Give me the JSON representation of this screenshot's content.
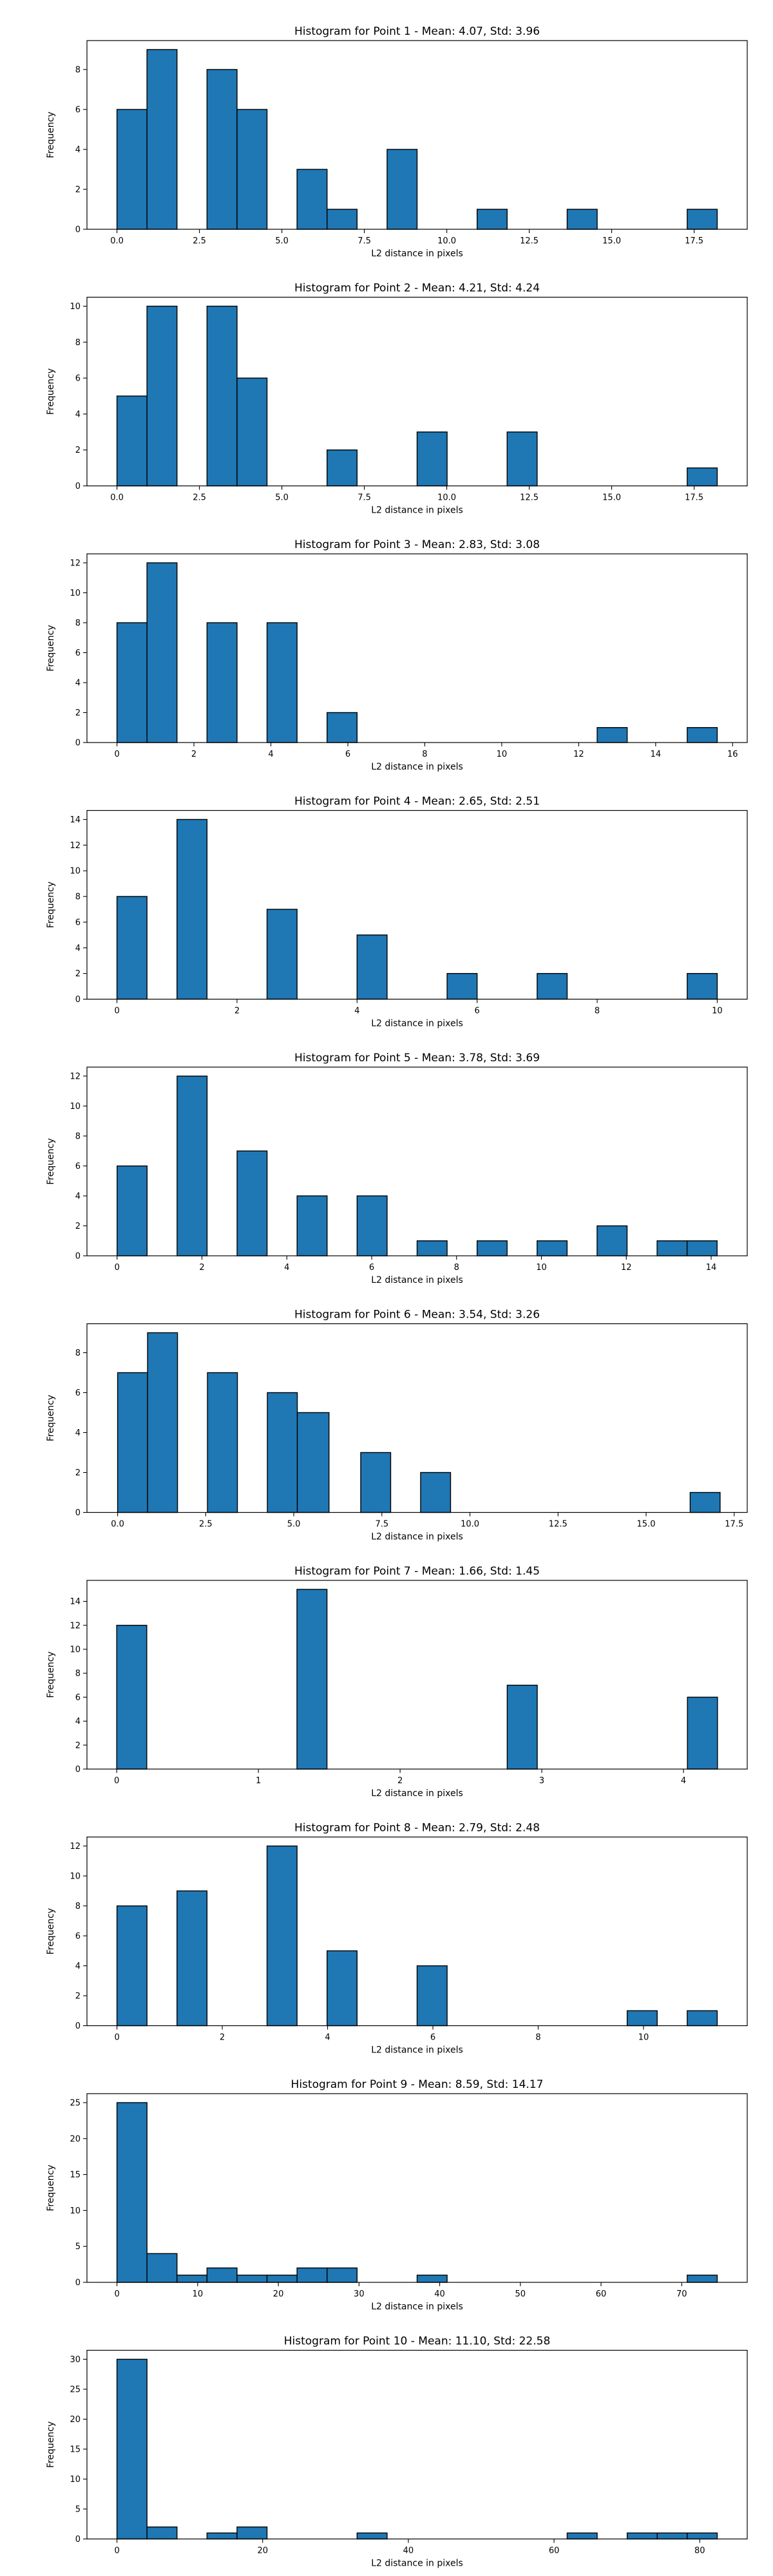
{
  "colors": {
    "bar_fill": "#1f77b4",
    "bar_edge": "#000000",
    "axis": "#000000",
    "text": "#000000"
  },
  "chart_data": [
    {
      "type": "bar",
      "title": "Histogram for Point 1 - Mean: 4.07, Std: 3.96",
      "xlabel": "L2 distance in pixels",
      "ylabel": "Frequency",
      "xlim": [
        -0.91,
        19.11
      ],
      "ylim": [
        0,
        9.45
      ],
      "x_ticks": [
        0,
        2.5,
        5,
        7.5,
        10,
        12.5,
        15,
        17.5
      ],
      "x_tick_labels": [
        "0.0",
        "2.5",
        "5.0",
        "7.5",
        "10.0",
        "12.5",
        "15.0",
        "17.5"
      ],
      "y_ticks": [
        0,
        2,
        4,
        6,
        8
      ],
      "y_tick_labels": [
        "0",
        "2",
        "4",
        "6",
        "8"
      ],
      "bin_edges": [
        0.0,
        0.91,
        1.82,
        2.73,
        3.64,
        4.55,
        5.46,
        6.37,
        7.28,
        8.19,
        9.1,
        10.01,
        10.92,
        11.83,
        12.74,
        13.65,
        14.56,
        15.47,
        16.38,
        17.29,
        18.2
      ],
      "counts": [
        6,
        9,
        0,
        8,
        6,
        0,
        3,
        1,
        0,
        4,
        0,
        0,
        1,
        0,
        0,
        1,
        0,
        0,
        0,
        1
      ]
    },
    {
      "type": "bar",
      "title": "Histogram for Point 2 - Mean: 4.21, Std: 4.24",
      "xlabel": "L2 distance in pixels",
      "ylabel": "Frequency",
      "xlim": [
        -0.91,
        19.11
      ],
      "ylim": [
        0,
        10.5
      ],
      "x_ticks": [
        0,
        2.5,
        5,
        7.5,
        10,
        12.5,
        15,
        17.5
      ],
      "x_tick_labels": [
        "0.0",
        "2.5",
        "5.0",
        "7.5",
        "10.0",
        "12.5",
        "15.0",
        "17.5"
      ],
      "y_ticks": [
        0,
        2,
        4,
        6,
        8,
        10
      ],
      "y_tick_labels": [
        "0",
        "2",
        "4",
        "6",
        "8",
        "10"
      ],
      "bin_edges": [
        0.0,
        0.91,
        1.82,
        2.73,
        3.64,
        4.55,
        5.46,
        6.37,
        7.28,
        8.19,
        9.1,
        10.01,
        10.92,
        11.83,
        12.74,
        13.65,
        14.56,
        15.47,
        16.38,
        17.29,
        18.2
      ],
      "counts": [
        5,
        10,
        0,
        10,
        6,
        0,
        0,
        2,
        0,
        0,
        3,
        0,
        0,
        3,
        0,
        0,
        0,
        0,
        0,
        1
      ]
    },
    {
      "type": "bar",
      "title": "Histogram for Point 3 - Mean: 2.83, Std: 3.08",
      "xlabel": "L2 distance in pixels",
      "ylabel": "Frequency",
      "xlim": [
        -0.78,
        16.38
      ],
      "ylim": [
        0,
        12.6
      ],
      "x_ticks": [
        0,
        2,
        4,
        6,
        8,
        10,
        12,
        14,
        16
      ],
      "x_tick_labels": [
        "0",
        "2",
        "4",
        "6",
        "8",
        "10",
        "12",
        "14",
        "16"
      ],
      "y_ticks": [
        0,
        2,
        4,
        6,
        8,
        10,
        12
      ],
      "y_tick_labels": [
        "0",
        "2",
        "4",
        "6",
        "8",
        "10",
        "12"
      ],
      "bin_edges": [
        0.0,
        0.78,
        1.56,
        2.34,
        3.12,
        3.9,
        4.68,
        5.46,
        6.24,
        7.02,
        7.8,
        8.58,
        9.36,
        10.14,
        10.92,
        11.7,
        12.48,
        13.26,
        14.04,
        14.82,
        15.6
      ],
      "counts": [
        8,
        12,
        0,
        8,
        0,
        8,
        0,
        2,
        0,
        0,
        0,
        0,
        0,
        0,
        0,
        0,
        1,
        0,
        0,
        1
      ]
    },
    {
      "type": "bar",
      "title": "Histogram for Point 4 - Mean: 2.65, Std: 2.51",
      "xlabel": "L2 distance in pixels",
      "ylabel": "Frequency",
      "xlim": [
        -0.5,
        10.5
      ],
      "ylim": [
        0,
        14.7
      ],
      "x_ticks": [
        0,
        2,
        4,
        6,
        8,
        10
      ],
      "x_tick_labels": [
        "0",
        "2",
        "4",
        "6",
        "8",
        "10"
      ],
      "y_ticks": [
        0,
        2,
        4,
        6,
        8,
        10,
        12,
        14
      ],
      "y_tick_labels": [
        "0",
        "2",
        "4",
        "6",
        "8",
        "10",
        "12",
        "14"
      ],
      "bin_edges": [
        0.0,
        0.5,
        1.0,
        1.5,
        2.0,
        2.5,
        3.0,
        3.5,
        4.0,
        4.5,
        5.0,
        5.5,
        6.0,
        6.5,
        7.0,
        7.5,
        8.0,
        8.5,
        9.0,
        9.5,
        10.0
      ],
      "counts": [
        8,
        0,
        14,
        0,
        0,
        7,
        0,
        0,
        5,
        0,
        0,
        2,
        0,
        0,
        2,
        0,
        0,
        0,
        0,
        2
      ]
    },
    {
      "type": "bar",
      "title": "Histogram for Point 5 - Mean: 3.78, Std: 3.69",
      "xlabel": "L2 distance in pixels",
      "ylabel": "Frequency",
      "xlim": [
        -0.71,
        14.85
      ],
      "ylim": [
        0,
        12.6
      ],
      "x_ticks": [
        0,
        2,
        4,
        6,
        8,
        10,
        12,
        14
      ],
      "x_tick_labels": [
        "0",
        "2",
        "4",
        "6",
        "8",
        "10",
        "12",
        "14"
      ],
      "y_ticks": [
        0,
        2,
        4,
        6,
        8,
        10,
        12
      ],
      "y_tick_labels": [
        "0",
        "2",
        "4",
        "6",
        "8",
        "10",
        "12"
      ],
      "bin_edges": [
        0.0,
        0.707,
        1.414,
        2.121,
        2.828,
        3.535,
        4.242,
        4.949,
        5.656,
        6.363,
        7.07,
        7.777,
        8.484,
        9.191,
        9.898,
        10.605,
        11.312,
        12.019,
        12.726,
        13.433,
        14.14
      ],
      "counts": [
        6,
        0,
        12,
        0,
        7,
        0,
        4,
        0,
        4,
        0,
        1,
        0,
        1,
        0,
        1,
        0,
        2,
        0,
        1,
        1
      ]
    },
    {
      "type": "bar",
      "title": "Histogram for Point 6 - Mean: 3.54, Std: 3.26",
      "xlabel": "L2 distance in pixels",
      "ylabel": "Frequency",
      "xlim": [
        -0.87,
        17.87
      ],
      "ylim": [
        0,
        9.45
      ],
      "x_ticks": [
        0,
        2.5,
        5,
        7.5,
        10,
        12.5,
        15,
        17.5
      ],
      "x_tick_labels": [
        "0.0",
        "2.5",
        "5.0",
        "7.5",
        "10.0",
        "12.5",
        "15.0",
        "17.5"
      ],
      "y_ticks": [
        0,
        2,
        4,
        6,
        8
      ],
      "y_tick_labels": [
        "0",
        "2",
        "4",
        "6",
        "8"
      ],
      "bin_edges": [
        0.0,
        0.85,
        1.7,
        2.55,
        3.4,
        4.25,
        5.1,
        6.0,
        6.9,
        7.75,
        8.6,
        9.45,
        10.3,
        11.15,
        12.0,
        12.85,
        13.7,
        14.55,
        15.4,
        16.25,
        17.1
      ],
      "counts": [
        7,
        9,
        0,
        7,
        0,
        6,
        5,
        0,
        3,
        0,
        2,
        0,
        0,
        0,
        0,
        0,
        0,
        0,
        0,
        1
      ]
    },
    {
      "type": "bar",
      "title": "Histogram for Point 7 - Mean: 1.66, Std: 1.45",
      "xlabel": "L2 distance in pixels",
      "ylabel": "Frequency",
      "xlim": [
        -0.21,
        4.45
      ],
      "ylim": [
        0,
        15.75
      ],
      "x_ticks": [
        0,
        1,
        2,
        3,
        4
      ],
      "x_tick_labels": [
        "0",
        "1",
        "2",
        "3",
        "4"
      ],
      "y_ticks": [
        0,
        2,
        4,
        6,
        8,
        10,
        12,
        14
      ],
      "y_tick_labels": [
        "0",
        "2",
        "4",
        "6",
        "8",
        "10",
        "12",
        "14"
      ],
      "bin_edges": [
        0.0,
        0.212,
        0.424,
        0.636,
        0.848,
        1.06,
        1.272,
        1.484,
        1.696,
        1.908,
        2.12,
        2.332,
        2.544,
        2.756,
        2.968,
        3.18,
        3.392,
        3.604,
        3.816,
        4.028,
        4.24
      ],
      "counts": [
        12,
        0,
        0,
        0,
        0,
        0,
        15,
        0,
        0,
        0,
        0,
        0,
        0,
        7,
        0,
        0,
        0,
        0,
        0,
        6
      ]
    },
    {
      "type": "bar",
      "title": "Histogram for Point 8 - Mean: 2.79, Std: 2.48",
      "xlabel": "L2 distance in pixels",
      "ylabel": "Frequency",
      "xlim": [
        -0.57,
        11.97
      ],
      "ylim": [
        0,
        12.6
      ],
      "x_ticks": [
        0,
        2,
        4,
        6,
        8,
        10
      ],
      "x_tick_labels": [
        "0",
        "2",
        "4",
        "6",
        "8",
        "10"
      ],
      "y_ticks": [
        0,
        2,
        4,
        6,
        8,
        10,
        12
      ],
      "y_tick_labels": [
        "0",
        "2",
        "4",
        "6",
        "8",
        "10",
        "12"
      ],
      "bin_edges": [
        0.0,
        0.57,
        1.14,
        1.71,
        2.28,
        2.85,
        3.42,
        3.99,
        4.56,
        5.13,
        5.7,
        6.27,
        6.84,
        7.41,
        7.98,
        8.55,
        9.12,
        9.69,
        10.26,
        10.83,
        11.4
      ],
      "counts": [
        8,
        0,
        9,
        0,
        0,
        12,
        0,
        5,
        0,
        0,
        4,
        0,
        0,
        0,
        0,
        0,
        0,
        1,
        0,
        1
      ]
    },
    {
      "type": "bar",
      "title": "Histogram for Point 9 - Mean: 8.59, Std: 14.17",
      "xlabel": "L2 distance in pixels",
      "ylabel": "Frequency",
      "xlim": [
        -3.72,
        78.12
      ],
      "ylim": [
        0,
        26.25
      ],
      "x_ticks": [
        0,
        10,
        20,
        30,
        40,
        50,
        60,
        70
      ],
      "x_tick_labels": [
        "0",
        "10",
        "20",
        "30",
        "40",
        "50",
        "60",
        "70"
      ],
      "y_ticks": [
        0,
        5,
        10,
        15,
        20,
        25
      ],
      "y_tick_labels": [
        "0",
        "5",
        "10",
        "15",
        "20",
        "25"
      ],
      "bin_edges": [
        0.0,
        3.72,
        7.44,
        11.16,
        14.88,
        18.6,
        22.32,
        26.04,
        29.76,
        33.48,
        37.2,
        40.92,
        44.64,
        48.36,
        52.08,
        55.8,
        59.52,
        63.24,
        66.96,
        70.68,
        74.4
      ],
      "counts": [
        25,
        4,
        1,
        2,
        1,
        1,
        2,
        2,
        0,
        0,
        1,
        0,
        0,
        0,
        0,
        0,
        0,
        0,
        0,
        1
      ]
    },
    {
      "type": "bar",
      "title": "Histogram for Point 10 - Mean: 11.10, Std: 22.58",
      "xlabel": "L2 distance in pixels",
      "ylabel": "Frequency",
      "xlim": [
        -4.12,
        86.52
      ],
      "ylim": [
        0,
        31.5
      ],
      "x_ticks": [
        0,
        20,
        40,
        60,
        80
      ],
      "x_tick_labels": [
        "0",
        "20",
        "40",
        "60",
        "80"
      ],
      "y_ticks": [
        0,
        5,
        10,
        15,
        20,
        25,
        30
      ],
      "y_tick_labels": [
        "0",
        "5",
        "10",
        "15",
        "20",
        "25",
        "30"
      ],
      "bin_edges": [
        0.0,
        4.12,
        8.24,
        12.36,
        16.48,
        20.6,
        24.72,
        28.84,
        32.96,
        37.08,
        41.2,
        45.32,
        49.44,
        53.56,
        57.68,
        61.8,
        65.92,
        70.04,
        74.16,
        78.28,
        82.4
      ],
      "counts": [
        30,
        2,
        0,
        1,
        2,
        0,
        0,
        0,
        1,
        0,
        0,
        0,
        0,
        0,
        0,
        1,
        0,
        1,
        1,
        1
      ]
    }
  ]
}
